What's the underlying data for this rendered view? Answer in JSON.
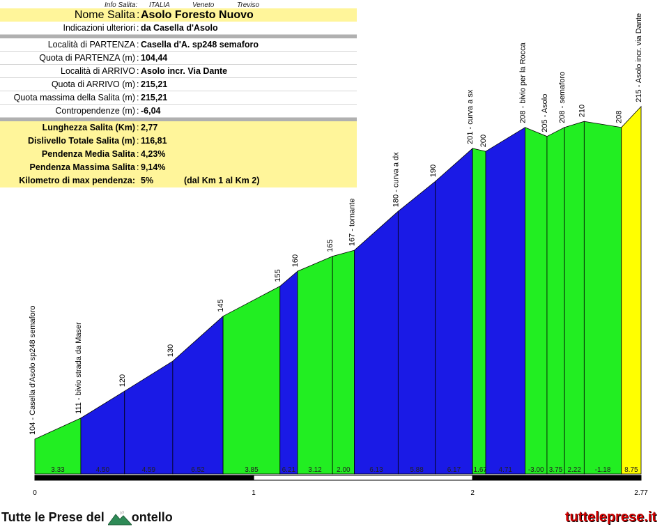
{
  "info_header": {
    "label": "Info Salita:",
    "country": "ITALIA",
    "region": "Veneto",
    "province": "Treviso"
  },
  "info": {
    "rows": [
      {
        "label": "Nome Salita",
        "value": "Asolo Foresto Nuovo"
      },
      {
        "label": "Indicazioni ulteriori",
        "value": "da Casella d'Asolo"
      },
      {
        "label": "Località di PARTENZA",
        "value": "Casella d'A. sp248 semaforo"
      },
      {
        "label": "Quota di PARTENZA (m)",
        "value": "104,44"
      },
      {
        "label": "Località di ARRIVO",
        "value": "Asolo incr. Via Dante"
      },
      {
        "label": "Quota di ARRIVO (m)",
        "value": "215,21"
      },
      {
        "label": "Quota massima della Salita (m)",
        "value": "215,21"
      },
      {
        "label": "Contropendenze (m)",
        "value": "-6,04"
      },
      {
        "label": "Lunghezza Salita (Km)",
        "value": "2,77"
      },
      {
        "label": "Dislivello Totale Salita (m)",
        "value": "116,81"
      },
      {
        "label": "Pendenza Media Salita",
        "value": "4,23%"
      },
      {
        "label": "Pendenza Massima Salita",
        "value": "9,14%"
      },
      {
        "label": "Kilometro di max pendenza:",
        "value": "5%",
        "extra": "(dal Km 1 al Km 2)"
      }
    ]
  },
  "chart_data": {
    "type": "area",
    "xlim": [
      0,
      2.77
    ],
    "x_ticks": [
      "0",
      "1",
      "2",
      "2.77"
    ],
    "points": [
      {
        "x": 0.0,
        "y": 104,
        "label": "104 - Casella d'Asolo sp248 semaforo"
      },
      {
        "x": 0.21,
        "y": 111,
        "label": "111 - bivio strada da Maser"
      },
      {
        "x": 0.41,
        "y": 120,
        "label": "120"
      },
      {
        "x": 0.63,
        "y": 130,
        "label": "130"
      },
      {
        "x": 0.86,
        "y": 145,
        "label": "145"
      },
      {
        "x": 1.12,
        "y": 155,
        "label": "155"
      },
      {
        "x": 1.2,
        "y": 160,
        "label": "160"
      },
      {
        "x": 1.36,
        "y": 165,
        "label": "165"
      },
      {
        "x": 1.46,
        "y": 167,
        "label": "167 - tornante"
      },
      {
        "x": 1.66,
        "y": 180,
        "label": "180 - curva a dx"
      },
      {
        "x": 1.83,
        "y": 190,
        "label": "190"
      },
      {
        "x": 2.0,
        "y": 201,
        "label": "201 - curva a sx"
      },
      {
        "x": 2.06,
        "y": 200,
        "label": "200"
      },
      {
        "x": 2.24,
        "y": 208,
        "label": "208 - bivio per la Rocca"
      },
      {
        "x": 2.34,
        "y": 205,
        "label": "205 - Asolo"
      },
      {
        "x": 2.42,
        "y": 208,
        "label": "208 - semaforo"
      },
      {
        "x": 2.51,
        "y": 210,
        "label": "210"
      },
      {
        "x": 2.68,
        "y": 208,
        "label": "208"
      },
      {
        "x": 2.77,
        "y": 215,
        "label": "215 - Asolo incr. via Dante"
      }
    ],
    "segments": [
      {
        "gradient": "3.33",
        "color": "#22ee22"
      },
      {
        "gradient": "4.50",
        "color": "#1a1ae6"
      },
      {
        "gradient": "4.59",
        "color": "#1a1ae6"
      },
      {
        "gradient": "6.52",
        "color": "#1a1ae6"
      },
      {
        "gradient": "3.85",
        "color": "#22ee22"
      },
      {
        "gradient": "6.21",
        "color": "#1a1ae6"
      },
      {
        "gradient": "3.12",
        "color": "#22ee22"
      },
      {
        "gradient": "2.00",
        "color": "#22ee22"
      },
      {
        "gradient": "6.13",
        "color": "#1a1ae6"
      },
      {
        "gradient": "5.88",
        "color": "#1a1ae6"
      },
      {
        "gradient": "6.17",
        "color": "#1a1ae6"
      },
      {
        "gradient": "-1.67",
        "color": "#22ee22"
      },
      {
        "gradient": "4.71",
        "color": "#1a1ae6"
      },
      {
        "gradient": "-3.00",
        "color": "#22ee22"
      },
      {
        "gradient": "3.75",
        "color": "#22ee22"
      },
      {
        "gradient": "2.22",
        "color": "#22ee22"
      },
      {
        "gradient": "-1.18",
        "color": "#22ee22"
      },
      {
        "gradient": "8.75",
        "color": "#ffff00"
      }
    ]
  },
  "footer": {
    "brand_left_a": "Tutte le Prese del",
    "brand_left_b": "ontello",
    "brand_right": "tutteleprese.it"
  }
}
